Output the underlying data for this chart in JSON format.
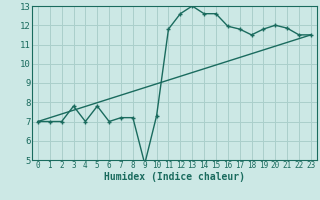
{
  "xlabel": "Humidex (Indice chaleur)",
  "ylabel": "",
  "bg_color": "#cce8e5",
  "line_color": "#1a6b5e",
  "grid_color": "#aacfcb",
  "series1_x": [
    0,
    1,
    2,
    3,
    4,
    5,
    6,
    7,
    8,
    9,
    10,
    11,
    12,
    13,
    14,
    15,
    16,
    17,
    18,
    19,
    20,
    21,
    22,
    23
  ],
  "series1_y": [
    7.0,
    7.0,
    7.0,
    7.8,
    7.0,
    7.8,
    7.0,
    7.2,
    7.2,
    4.8,
    7.3,
    11.8,
    12.6,
    13.0,
    12.6,
    12.6,
    11.95,
    11.8,
    11.5,
    11.8,
    12.0,
    11.85,
    11.5,
    11.5
  ],
  "series2_x": [
    0,
    23
  ],
  "series2_y": [
    7.0,
    11.5
  ],
  "ylim": [
    5,
    13
  ],
  "xlim": [
    -0.5,
    23.5
  ],
  "yticks": [
    5,
    6,
    7,
    8,
    9,
    10,
    11,
    12,
    13
  ],
  "xticks": [
    0,
    1,
    2,
    3,
    4,
    5,
    6,
    7,
    8,
    9,
    10,
    11,
    12,
    13,
    14,
    15,
    16,
    17,
    18,
    19,
    20,
    21,
    22,
    23
  ],
  "tick_fontsize": 5.5,
  "ylabel_fontsize": 6.5,
  "xlabel_fontsize": 7.0
}
